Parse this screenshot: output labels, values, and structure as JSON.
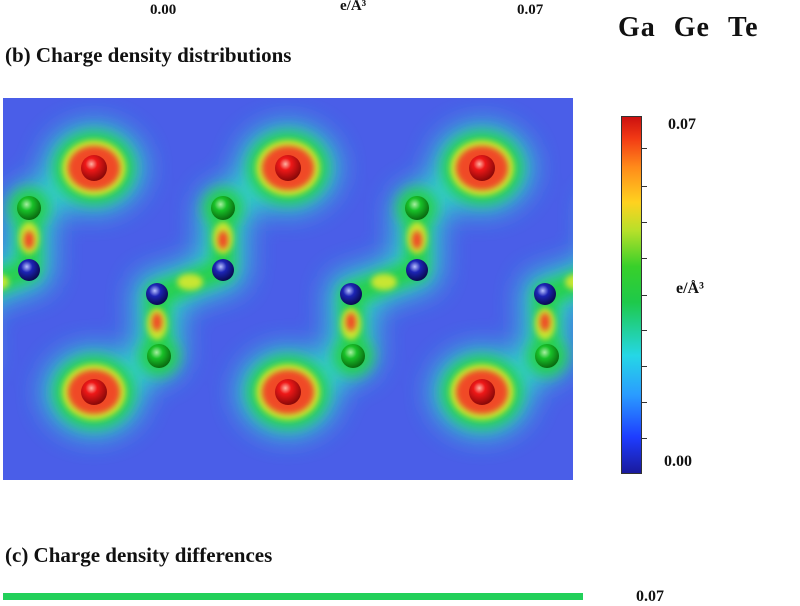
{
  "top_scale": {
    "min": "0.00",
    "unit": "e/Å³",
    "max": "0.07"
  },
  "legend": {
    "ga": "Ga",
    "ge": "Ge",
    "te": "Te"
  },
  "panel_b": {
    "title": "(b) Charge density distributions",
    "colorbar": {
      "max": "0.07",
      "unit": "e/Å³",
      "min": "0.00"
    }
  },
  "panel_c": {
    "title": "(c) Charge density differences",
    "colorbar_partial": "0.07"
  },
  "colors": {
    "background": "#4a5ee8",
    "halo": "#2fe0c8",
    "glow": "#28d04a",
    "inner": "#c8e632",
    "high": "#f04a26",
    "peak": "#ff2a14",
    "te_atom": "#e8141a",
    "ge_atom": "#18c028",
    "ga_atom": "#14189c"
  }
}
